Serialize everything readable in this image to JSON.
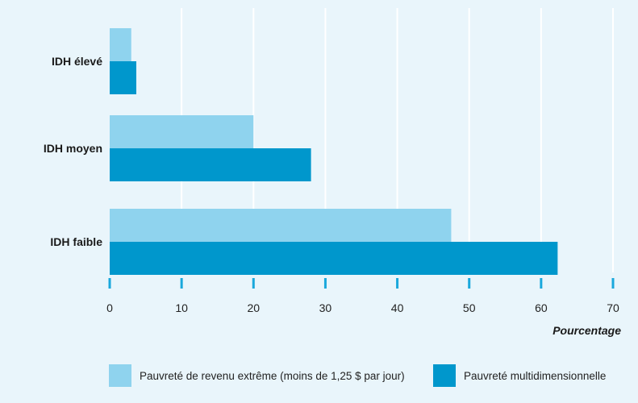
{
  "colors": {
    "background": "#e9f5fb",
    "series_light": "#8fd3ee",
    "series_dark": "#0097cc",
    "grid": "#ffffff",
    "tick": "#1aa8dc"
  },
  "chart_data": {
    "type": "bar",
    "orientation": "horizontal",
    "categories": [
      "IDH élevé",
      "IDH moyen",
      "IDH faible"
    ],
    "series": [
      {
        "name": "Pauvreté de revenu extrême (moins de 1,25 $ par jour)",
        "values": [
          3,
          20,
          47.5
        ]
      },
      {
        "name": "Pauvreté multidimensionnelle",
        "values": [
          3.7,
          28,
          62.3
        ]
      }
    ],
    "x_ticks": [
      0,
      10,
      20,
      30,
      40,
      50,
      60,
      70
    ],
    "xlim": [
      0,
      70
    ],
    "xlabel": "Pourcentage",
    "ylabel": "",
    "grid": true,
    "legend_position": "bottom"
  }
}
